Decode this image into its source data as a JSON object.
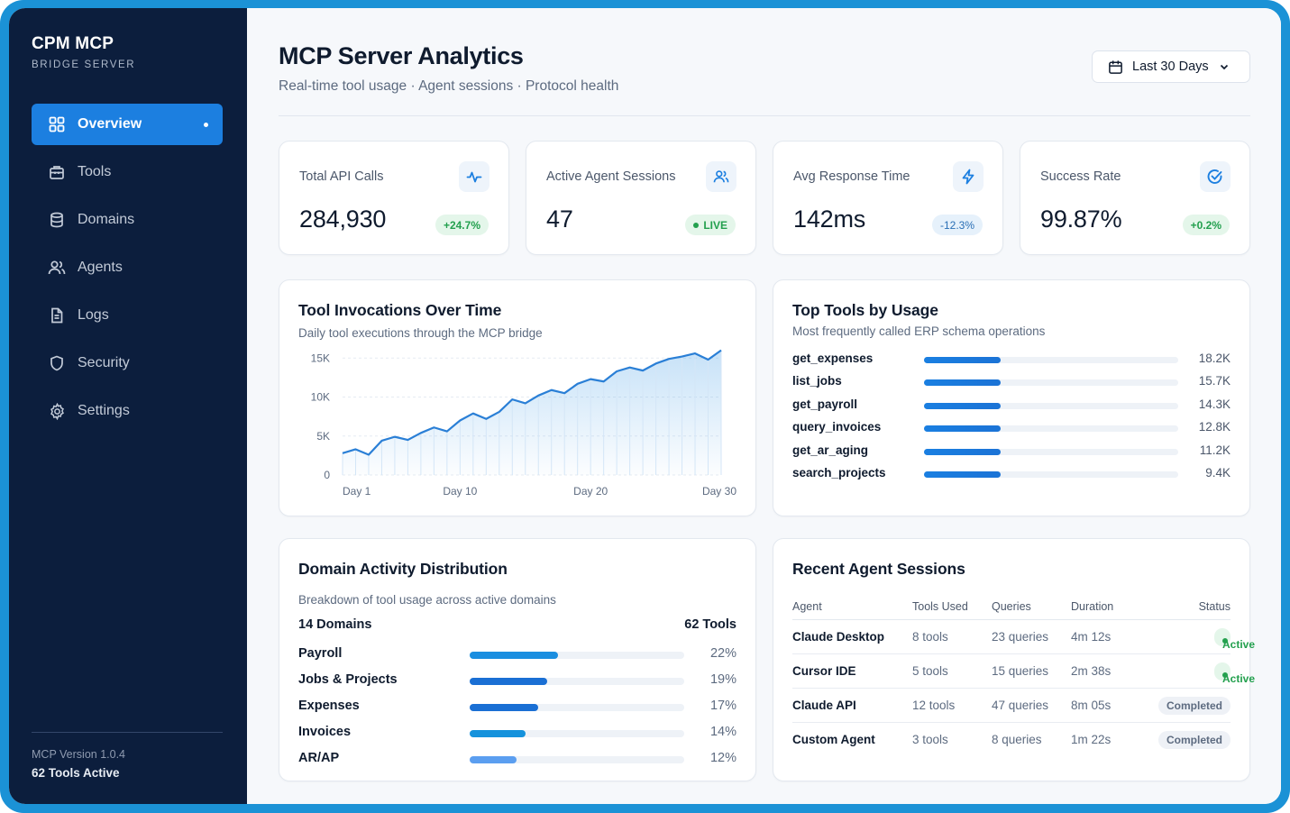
{
  "sidebar": {
    "title": "CPM MCP",
    "subtitle": "BRIDGE SERVER",
    "items": [
      {
        "label": "Overview",
        "icon": "grid-icon",
        "active": true
      },
      {
        "label": "Tools",
        "icon": "toolbox-icon"
      },
      {
        "label": "Domains",
        "icon": "database-icon"
      },
      {
        "label": "Agents",
        "icon": "users-icon"
      },
      {
        "label": "Logs",
        "icon": "document-icon"
      },
      {
        "label": "Security",
        "icon": "shield-icon"
      },
      {
        "label": "Settings",
        "icon": "gear-icon"
      }
    ],
    "version": "MCP Version 1.0.4",
    "tools_active": "62 Tools Active"
  },
  "header": {
    "title": "MCP Server Analytics",
    "subtitle": "Real-time tool usage · Agent sessions · Protocol health",
    "date_range": "Last 30 Days"
  },
  "kpis": [
    {
      "label": "Total API Calls",
      "value": "284,930",
      "badge": "+24.7%",
      "icon": "activity-icon"
    },
    {
      "label": "Active Agent Sessions",
      "value": "47",
      "badge": "LIVE",
      "icon": "users-icon"
    },
    {
      "label": "Avg Response Time",
      "value": "142ms",
      "badge": "-12.3%",
      "icon": "lightning-icon"
    },
    {
      "label": "Success Rate",
      "value": "99.87%",
      "badge": "+0.2%",
      "icon": "check-circle-icon"
    }
  ],
  "invocations": {
    "title": "Tool Invocations Over Time",
    "subtitle": "Daily tool executions through the MCP bridge"
  },
  "chart_data": {
    "type": "area",
    "title": "Tool Invocations Over Time",
    "subtitle": "Daily tool executions through the MCP bridge",
    "x": [
      1,
      2,
      3,
      4,
      5,
      6,
      7,
      8,
      9,
      10,
      11,
      12,
      13,
      14,
      15,
      16,
      17,
      18,
      19,
      20,
      21,
      22,
      23,
      24,
      25,
      26,
      27,
      28,
      29,
      30
    ],
    "y": [
      2800,
      3300,
      2600,
      4400,
      4900,
      4500,
      5400,
      6100,
      5600,
      7000,
      7900,
      7200,
      8100,
      9700,
      9200,
      10200,
      10900,
      10500,
      11700,
      12300,
      12000,
      13300,
      13800,
      13400,
      14300,
      14900,
      15200,
      15600,
      14800,
      16000
    ],
    "xticks": [
      "Day 1",
      "Day 10",
      "Day 20",
      "Day 30"
    ],
    "yticks": [
      "0",
      "5K",
      "10K",
      "15K"
    ],
    "ylim": [
      0,
      17000
    ],
    "grid": true,
    "accent": "#2a7fd6"
  },
  "top_tools": {
    "title": "Top Tools by Usage",
    "subtitle": "Most frequently called ERP schema operations",
    "items": [
      {
        "name": "get_expenses",
        "value": "18.2K",
        "fraction": 0.3
      },
      {
        "name": "list_jobs",
        "value": "15.7K",
        "fraction": 0.3
      },
      {
        "name": "get_payroll",
        "value": "14.3K",
        "fraction": 0.3
      },
      {
        "name": "query_invoices",
        "value": "12.8K",
        "fraction": 0.3
      },
      {
        "name": "get_ar_aging",
        "value": "11.2K",
        "fraction": 0.3
      },
      {
        "name": "search_projects",
        "value": "9.4K",
        "fraction": 0.3
      }
    ]
  },
  "domains": {
    "title": "Domain Activity Distribution",
    "subtitle": "Breakdown of tool usage across active domains",
    "count_label": "14 Domains",
    "tools_label": "62 Tools",
    "items": [
      {
        "name": "Payroll",
        "value": "22%",
        "fraction": 0.41,
        "color": "#1a8ee0"
      },
      {
        "name": "Jobs & Projects",
        "value": "19%",
        "fraction": 0.36,
        "color": "#1a6fd4"
      },
      {
        "name": "Expenses",
        "value": "17%",
        "fraction": 0.32,
        "color": "#1a6fd4"
      },
      {
        "name": "Invoices",
        "value": "14%",
        "fraction": 0.26,
        "color": "#1592dc"
      },
      {
        "name": "AR/AP",
        "value": "12%",
        "fraction": 0.22,
        "color": "#5b9ef0"
      }
    ]
  },
  "sessions": {
    "title": "Recent Agent Sessions",
    "columns": [
      "Agent",
      "Tools Used",
      "Queries",
      "Duration",
      "Status"
    ],
    "rows": [
      {
        "agent": "Claude Desktop",
        "tools": "8 tools",
        "queries": "23 queries",
        "duration": "4m 12s",
        "status": "Active"
      },
      {
        "agent": "Cursor IDE",
        "tools": "5 tools",
        "queries": "15 queries",
        "duration": "2m 38s",
        "status": "Active"
      },
      {
        "agent": "Claude API",
        "tools": "12 tools",
        "queries": "47 queries",
        "duration": "8m 05s",
        "status": "Completed"
      },
      {
        "agent": "Custom Agent",
        "tools": "3 tools",
        "queries": "8 queries",
        "duration": "1m 22s",
        "status": "Completed"
      }
    ]
  }
}
